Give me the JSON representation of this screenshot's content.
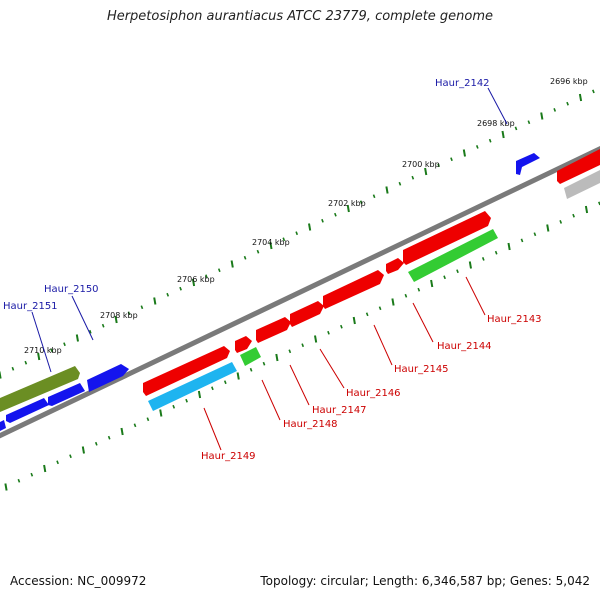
{
  "title": "Herpetosiphon aurantiacus ATCC 23779, complete genome",
  "footer": {
    "accession": "Accession: NC_009972",
    "topology": "Topology: circular; Length: 6,346,587 bp; Genes: 5,042"
  },
  "colors": {
    "forward_red": "#ee0000",
    "reverse_green": "#33cc33",
    "blue": "#1414ee",
    "olive": "#6b8e23",
    "cyan": "#1eb4f0",
    "grey": "#bbbbbb",
    "backbone": "#777777",
    "ticks": "#1a7a1a",
    "label_blue": "#1a1aa6",
    "label_red": "#cc0000"
  },
  "kbp_labels": [
    "2696 kbp",
    "2698 kbp",
    "2700 kbp",
    "2702 kbp",
    "2704 kbp",
    "2706 kbp",
    "2708 kbp",
    "2710 kbp"
  ],
  "gene_labels": [
    {
      "text": "Haur_2142",
      "color": "blue"
    },
    {
      "text": "Haur_2150",
      "color": "blue"
    },
    {
      "text": "Haur_2151",
      "color": "blue"
    },
    {
      "text": "Haur_2143",
      "color": "red"
    },
    {
      "text": "Haur_2144",
      "color": "red"
    },
    {
      "text": "Haur_2145",
      "color": "red"
    },
    {
      "text": "Haur_2146",
      "color": "red"
    },
    {
      "text": "Haur_2147",
      "color": "red"
    },
    {
      "text": "Haur_2148",
      "color": "red"
    },
    {
      "text": "Haur_2149",
      "color": "red"
    }
  ]
}
